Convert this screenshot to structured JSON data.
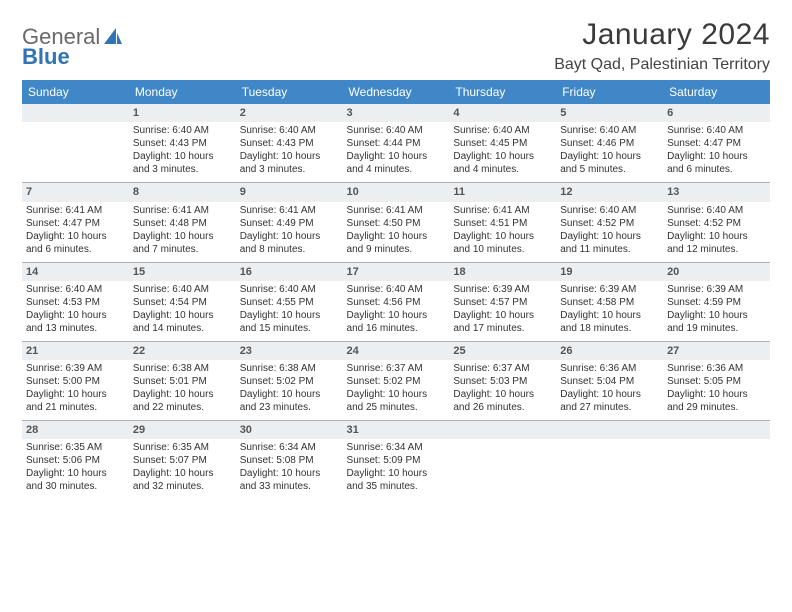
{
  "logo": {
    "word1": "General",
    "word2": "Blue"
  },
  "brand_colors": {
    "gray": "#6a6a6a",
    "blue": "#2f74b5",
    "header_bg": "#3f87c6"
  },
  "title": "January 2024",
  "location": "Bayt Qad, Palestinian Territory",
  "weekdays": [
    "Sunday",
    "Monday",
    "Tuesday",
    "Wednesday",
    "Thursday",
    "Friday",
    "Saturday"
  ],
  "calendar": {
    "type": "table",
    "header_bg": "#3f87c6",
    "header_text_color": "#ffffff",
    "daybar_bg": "#eceff1",
    "border_color": "#aab4bd",
    "body_fontsize": 10,
    "header_fontsize": 12
  },
  "weeks": [
    [
      null,
      {
        "n": "1",
        "sr": "Sunrise: 6:40 AM",
        "ss": "Sunset: 4:43 PM",
        "d1": "Daylight: 10 hours",
        "d2": "and 3 minutes."
      },
      {
        "n": "2",
        "sr": "Sunrise: 6:40 AM",
        "ss": "Sunset: 4:43 PM",
        "d1": "Daylight: 10 hours",
        "d2": "and 3 minutes."
      },
      {
        "n": "3",
        "sr": "Sunrise: 6:40 AM",
        "ss": "Sunset: 4:44 PM",
        "d1": "Daylight: 10 hours",
        "d2": "and 4 minutes."
      },
      {
        "n": "4",
        "sr": "Sunrise: 6:40 AM",
        "ss": "Sunset: 4:45 PM",
        "d1": "Daylight: 10 hours",
        "d2": "and 4 minutes."
      },
      {
        "n": "5",
        "sr": "Sunrise: 6:40 AM",
        "ss": "Sunset: 4:46 PM",
        "d1": "Daylight: 10 hours",
        "d2": "and 5 minutes."
      },
      {
        "n": "6",
        "sr": "Sunrise: 6:40 AM",
        "ss": "Sunset: 4:47 PM",
        "d1": "Daylight: 10 hours",
        "d2": "and 6 minutes."
      }
    ],
    [
      {
        "n": "7",
        "sr": "Sunrise: 6:41 AM",
        "ss": "Sunset: 4:47 PM",
        "d1": "Daylight: 10 hours",
        "d2": "and 6 minutes."
      },
      {
        "n": "8",
        "sr": "Sunrise: 6:41 AM",
        "ss": "Sunset: 4:48 PM",
        "d1": "Daylight: 10 hours",
        "d2": "and 7 minutes."
      },
      {
        "n": "9",
        "sr": "Sunrise: 6:41 AM",
        "ss": "Sunset: 4:49 PM",
        "d1": "Daylight: 10 hours",
        "d2": "and 8 minutes."
      },
      {
        "n": "10",
        "sr": "Sunrise: 6:41 AM",
        "ss": "Sunset: 4:50 PM",
        "d1": "Daylight: 10 hours",
        "d2": "and 9 minutes."
      },
      {
        "n": "11",
        "sr": "Sunrise: 6:41 AM",
        "ss": "Sunset: 4:51 PM",
        "d1": "Daylight: 10 hours",
        "d2": "and 10 minutes."
      },
      {
        "n": "12",
        "sr": "Sunrise: 6:40 AM",
        "ss": "Sunset: 4:52 PM",
        "d1": "Daylight: 10 hours",
        "d2": "and 11 minutes."
      },
      {
        "n": "13",
        "sr": "Sunrise: 6:40 AM",
        "ss": "Sunset: 4:52 PM",
        "d1": "Daylight: 10 hours",
        "d2": "and 12 minutes."
      }
    ],
    [
      {
        "n": "14",
        "sr": "Sunrise: 6:40 AM",
        "ss": "Sunset: 4:53 PM",
        "d1": "Daylight: 10 hours",
        "d2": "and 13 minutes."
      },
      {
        "n": "15",
        "sr": "Sunrise: 6:40 AM",
        "ss": "Sunset: 4:54 PM",
        "d1": "Daylight: 10 hours",
        "d2": "and 14 minutes."
      },
      {
        "n": "16",
        "sr": "Sunrise: 6:40 AM",
        "ss": "Sunset: 4:55 PM",
        "d1": "Daylight: 10 hours",
        "d2": "and 15 minutes."
      },
      {
        "n": "17",
        "sr": "Sunrise: 6:40 AM",
        "ss": "Sunset: 4:56 PM",
        "d1": "Daylight: 10 hours",
        "d2": "and 16 minutes."
      },
      {
        "n": "18",
        "sr": "Sunrise: 6:39 AM",
        "ss": "Sunset: 4:57 PM",
        "d1": "Daylight: 10 hours",
        "d2": "and 17 minutes."
      },
      {
        "n": "19",
        "sr": "Sunrise: 6:39 AM",
        "ss": "Sunset: 4:58 PM",
        "d1": "Daylight: 10 hours",
        "d2": "and 18 minutes."
      },
      {
        "n": "20",
        "sr": "Sunrise: 6:39 AM",
        "ss": "Sunset: 4:59 PM",
        "d1": "Daylight: 10 hours",
        "d2": "and 19 minutes."
      }
    ],
    [
      {
        "n": "21",
        "sr": "Sunrise: 6:39 AM",
        "ss": "Sunset: 5:00 PM",
        "d1": "Daylight: 10 hours",
        "d2": "and 21 minutes."
      },
      {
        "n": "22",
        "sr": "Sunrise: 6:38 AM",
        "ss": "Sunset: 5:01 PM",
        "d1": "Daylight: 10 hours",
        "d2": "and 22 minutes."
      },
      {
        "n": "23",
        "sr": "Sunrise: 6:38 AM",
        "ss": "Sunset: 5:02 PM",
        "d1": "Daylight: 10 hours",
        "d2": "and 23 minutes."
      },
      {
        "n": "24",
        "sr": "Sunrise: 6:37 AM",
        "ss": "Sunset: 5:02 PM",
        "d1": "Daylight: 10 hours",
        "d2": "and 25 minutes."
      },
      {
        "n": "25",
        "sr": "Sunrise: 6:37 AM",
        "ss": "Sunset: 5:03 PM",
        "d1": "Daylight: 10 hours",
        "d2": "and 26 minutes."
      },
      {
        "n": "26",
        "sr": "Sunrise: 6:36 AM",
        "ss": "Sunset: 5:04 PM",
        "d1": "Daylight: 10 hours",
        "d2": "and 27 minutes."
      },
      {
        "n": "27",
        "sr": "Sunrise: 6:36 AM",
        "ss": "Sunset: 5:05 PM",
        "d1": "Daylight: 10 hours",
        "d2": "and 29 minutes."
      }
    ],
    [
      {
        "n": "28",
        "sr": "Sunrise: 6:35 AM",
        "ss": "Sunset: 5:06 PM",
        "d1": "Daylight: 10 hours",
        "d2": "and 30 minutes."
      },
      {
        "n": "29",
        "sr": "Sunrise: 6:35 AM",
        "ss": "Sunset: 5:07 PM",
        "d1": "Daylight: 10 hours",
        "d2": "and 32 minutes."
      },
      {
        "n": "30",
        "sr": "Sunrise: 6:34 AM",
        "ss": "Sunset: 5:08 PM",
        "d1": "Daylight: 10 hours",
        "d2": "and 33 minutes."
      },
      {
        "n": "31",
        "sr": "Sunrise: 6:34 AM",
        "ss": "Sunset: 5:09 PM",
        "d1": "Daylight: 10 hours",
        "d2": "and 35 minutes."
      },
      null,
      null,
      null
    ]
  ]
}
